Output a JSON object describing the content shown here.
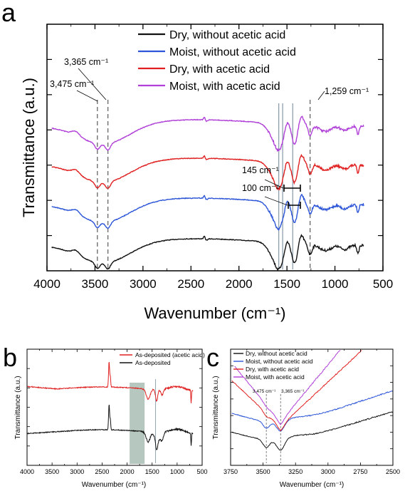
{
  "panel_labels": {
    "a": "a",
    "b": "b",
    "c": "c"
  },
  "colors": {
    "black": "#111111",
    "blue": "#2c55d8",
    "red": "#e02020",
    "magenta": "#b040d8",
    "shade": "#a9bdb4",
    "guide": "#7a8fa0"
  },
  "chart_data": [
    {
      "panel": "a",
      "type": "line",
      "xlabel": "Wavenumber (cm⁻¹)",
      "ylabel": "Transmittance (a.u.)",
      "xlim": [
        4000,
        500
      ],
      "xticks": [
        4000,
        3500,
        3000,
        2500,
        2000,
        1500,
        1000,
        500
      ],
      "xtick_labels": [
        "4000",
        "3500",
        "3000",
        "2500",
        "2000",
        "1500",
        "1000",
        "500"
      ],
      "legend": "top-right",
      "series": [
        {
          "name": "Dry, without acetic acid",
          "color": "black"
        },
        {
          "name": "Moist, without acetic acid",
          "color": "blue"
        },
        {
          "name": "Dry, with acetic acid",
          "color": "red"
        },
        {
          "name": "Moist, with acetic acid",
          "color": "magenta"
        }
      ],
      "annotations": [
        "3,365 cm⁻¹",
        "3,475 cm⁻¹",
        "1,259 cm⁻¹",
        "145 cm⁻¹",
        "100 cm⁻¹"
      ],
      "reference_lines": [
        3475,
        3365,
        1259,
        1585,
        1545,
        1440
      ]
    },
    {
      "panel": "b",
      "type": "line",
      "xlabel": "Wavenumber (cm⁻¹)",
      "ylabel": "Transmittance (a.u.)",
      "xlim": [
        4000,
        500
      ],
      "xticks": [
        4000,
        3500,
        3000,
        2500,
        2000,
        1500,
        1000,
        500
      ],
      "xtick_labels": [
        "4000",
        "3500",
        "3000",
        "2500",
        "2000",
        "1500",
        "1000",
        "500"
      ],
      "legend": "top-right",
      "series": [
        {
          "name": "As-deposited (acetic acid)",
          "color": "red"
        },
        {
          "name": "As-deposited",
          "color": "black"
        }
      ],
      "shaded_range": [
        1950,
        1650
      ],
      "reference_lines": [
        1430
      ]
    },
    {
      "panel": "c",
      "type": "line",
      "xlabel": "Wavenumber (cm⁻¹)",
      "ylabel": "Transmittance (a.u.)",
      "xlim": [
        3750,
        2500
      ],
      "xticks": [
        3750,
        3500,
        3250,
        3000,
        2750,
        2500
      ],
      "xtick_labels": [
        "3750",
        "3500",
        "3250",
        "3000",
        "2750",
        "2500"
      ],
      "legend": "top-left",
      "series": [
        {
          "name": "Dry, without acetic acid",
          "color": "black"
        },
        {
          "name": "Moist, without acetic acid",
          "color": "blue"
        },
        {
          "name": "Dry, with acetic acid",
          "color": "red"
        },
        {
          "name": "Moist, with acetic acid",
          "color": "magenta"
        }
      ],
      "annotations": [
        "3,475 cm⁻¹",
        "3,365 cm⁻¹"
      ],
      "reference_lines": [
        3475,
        3365
      ]
    }
  ]
}
